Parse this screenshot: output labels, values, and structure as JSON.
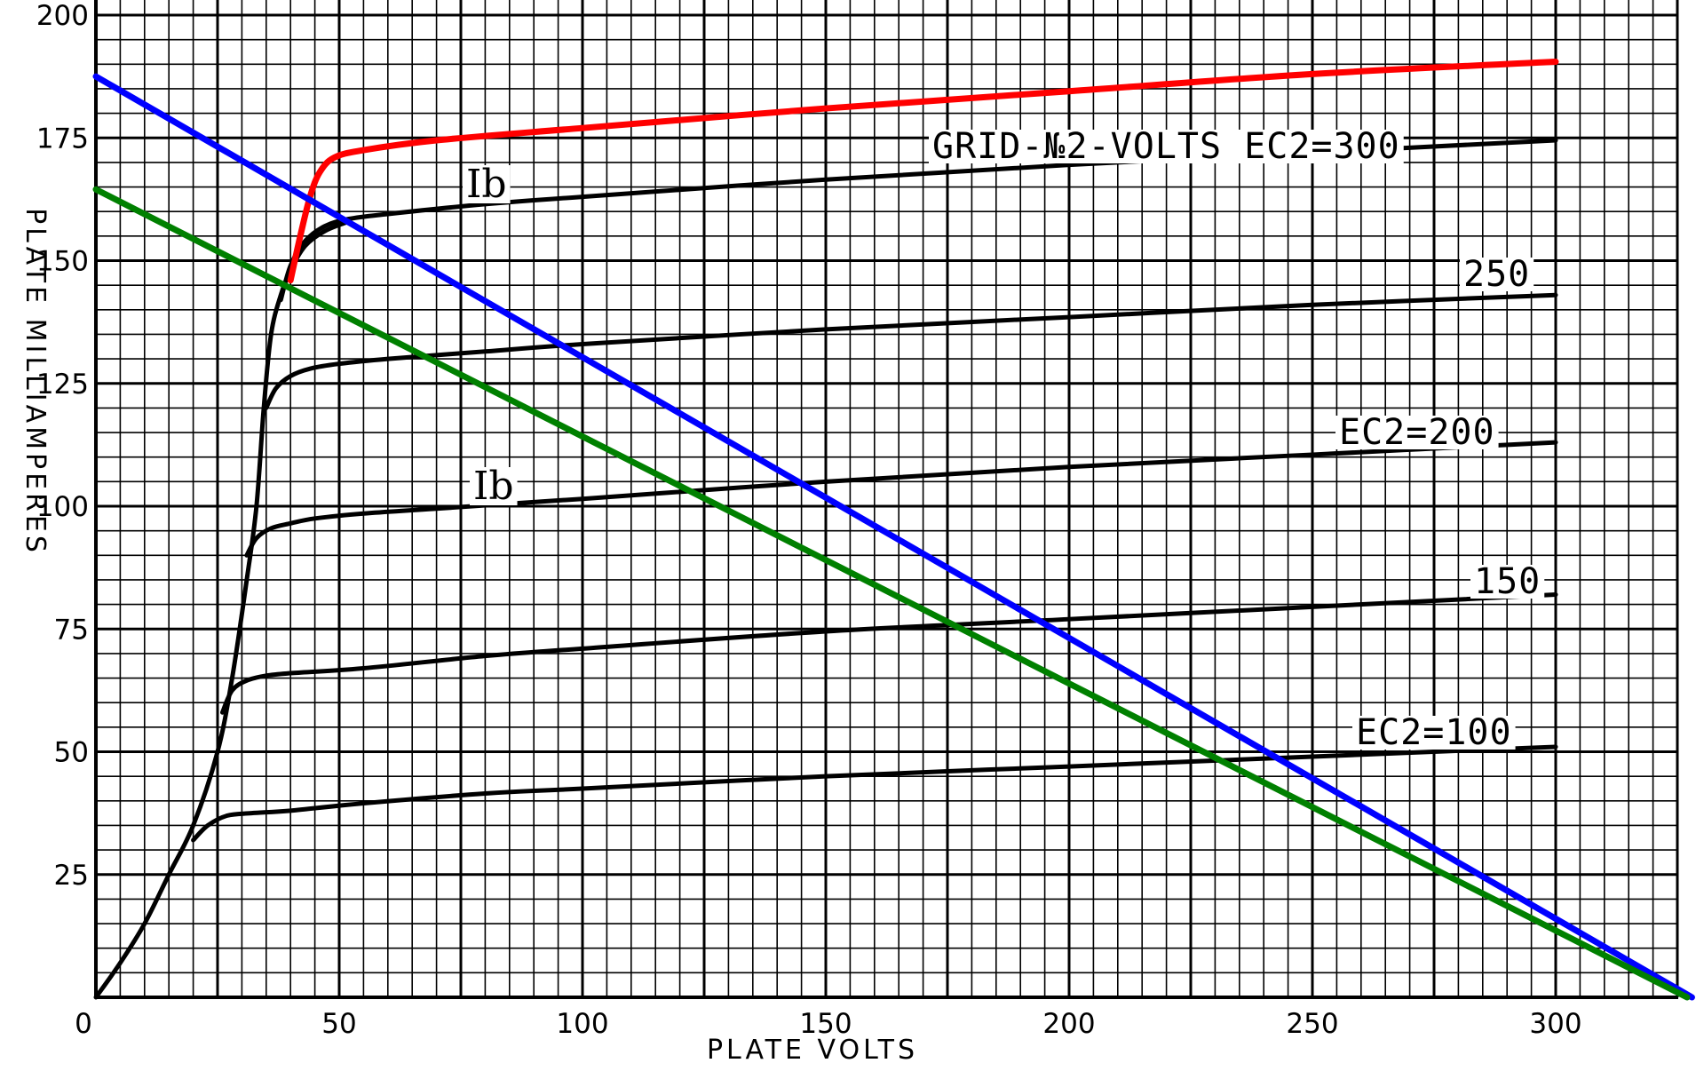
{
  "chart_data": {
    "type": "line",
    "xlabel": "PLATE VOLTS",
    "ylabel": "PLATE MILLIAMPERES",
    "xlim": [
      0,
      325
    ],
    "ylim": [
      0,
      200
    ],
    "x_ticks": [
      0,
      50,
      100,
      150,
      200,
      250,
      300
    ],
    "y_ticks": [
      25,
      50,
      75,
      100,
      125,
      150,
      175,
      200
    ],
    "grid": true,
    "annotations": {
      "ec2_300": "GRID-№2-VOLTS EC2=300",
      "ec2_250": "250",
      "ec2_200": "EC2=200",
      "ec2_150": "150",
      "ec2_100": "EC2=100",
      "ib_upper": "Ib",
      "ib_lower": "Ib"
    },
    "series": [
      {
        "key": "ec2_300",
        "color": "#000000",
        "x": [
          38,
          40,
          43,
          47,
          52,
          60,
          80,
          100,
          150,
          200,
          250,
          300
        ],
        "y": [
          142,
          149,
          154,
          157,
          158.5,
          159.5,
          161.5,
          163,
          166.5,
          169.5,
          172,
          174.5
        ]
      },
      {
        "key": "ec2_250",
        "color": "#000000",
        "x": [
          35,
          37,
          40,
          44,
          50,
          60,
          80,
          100,
          150,
          200,
          250,
          300
        ],
        "y": [
          120,
          124,
          126.5,
          128,
          129,
          130,
          131.5,
          133,
          136,
          138.5,
          141,
          143
        ]
      },
      {
        "key": "ec2_200",
        "color": "#000000",
        "x": [
          31,
          33,
          36,
          40,
          45,
          55,
          70,
          100,
          150,
          200,
          250,
          300
        ],
        "y": [
          90,
          93.5,
          95.5,
          96.5,
          97.5,
          98.5,
          99.5,
          101.5,
          105,
          108,
          110.5,
          113
        ]
      },
      {
        "key": "ec2_150",
        "color": "#000000",
        "x": [
          26,
          28,
          31,
          35,
          40,
          55,
          80,
          100,
          150,
          200,
          250,
          300
        ],
        "y": [
          58,
          62.5,
          64.5,
          65.5,
          66,
          67,
          69.5,
          71,
          74.5,
          77,
          79.5,
          82
        ]
      },
      {
        "key": "ec2_100",
        "color": "#000000",
        "x": [
          20,
          23,
          27,
          32,
          40,
          55,
          80,
          100,
          150,
          200,
          250,
          300
        ],
        "y": [
          32,
          35,
          37,
          37.5,
          38,
          39.5,
          41.5,
          42.5,
          45,
          47,
          49,
          51
        ]
      },
      {
        "key": "knee_locus",
        "color": "#000000",
        "x": [
          0,
          5,
          10,
          15,
          20,
          25,
          28,
          31,
          33,
          34.5,
          36,
          38,
          40,
          43,
          47,
          52
        ],
        "y": [
          0,
          7,
          15,
          25,
          35,
          50,
          65,
          85,
          100,
          120,
          135,
          143,
          148,
          153,
          156,
          158
        ]
      },
      {
        "key": "red_curve",
        "color": "#ff0000",
        "x": [
          40,
          42,
          44,
          46,
          49,
          55,
          70,
          100,
          150,
          200,
          250,
          300
        ],
        "y": [
          146,
          155,
          163,
          168,
          171,
          172.5,
          174.5,
          177,
          181,
          184.5,
          188,
          190.5
        ]
      },
      {
        "key": "blue_load_line",
        "color": "#0000ff",
        "x": [
          0,
          328
        ],
        "y": [
          187.5,
          0
        ]
      },
      {
        "key": "green_load_line",
        "color": "#008000",
        "x": [
          0,
          327
        ],
        "y": [
          164.5,
          0
        ]
      }
    ]
  }
}
